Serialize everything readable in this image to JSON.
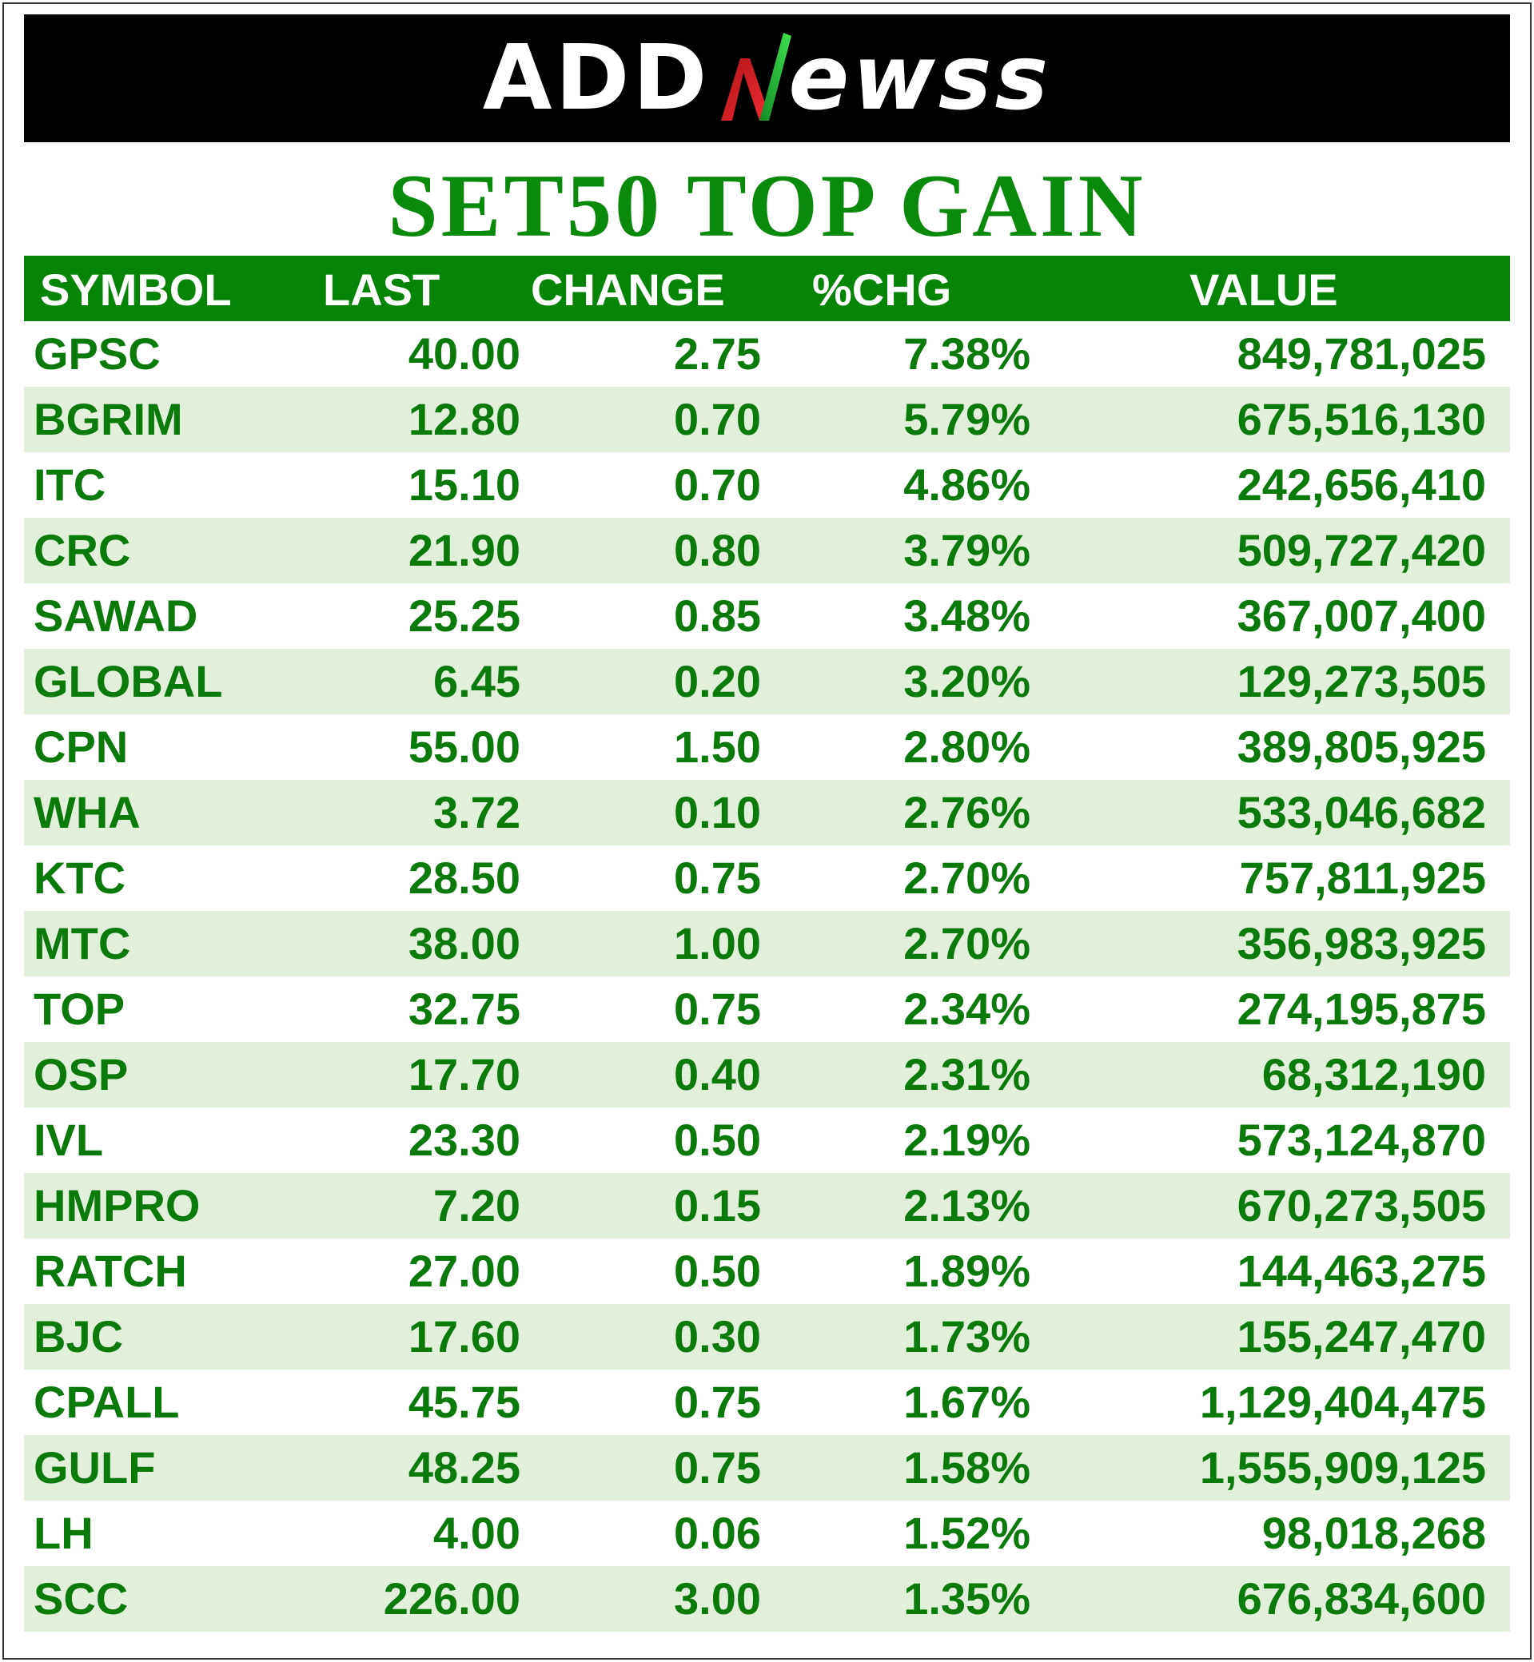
{
  "header": {
    "logo_prefix": "ADD",
    "logo_suffix": "ewss",
    "logo_colors": {
      "green": "#2ecc40",
      "red": "#e8202a"
    },
    "title": "SET50 TOP GAIN"
  },
  "chart_data": {
    "type": "table",
    "title": "SET50 TOP GAIN",
    "columns": [
      "SYMBOL",
      "LAST",
      "CHANGE",
      "%CHG",
      "VALUE"
    ],
    "rows": [
      [
        "GPSC",
        "40.00",
        "2.75",
        "7.38%",
        "849,781,025"
      ],
      [
        "BGRIM",
        "12.80",
        "0.70",
        "5.79%",
        "675,516,130"
      ],
      [
        "ITC",
        "15.10",
        "0.70",
        "4.86%",
        "242,656,410"
      ],
      [
        "CRC",
        "21.90",
        "0.80",
        "3.79%",
        "509,727,420"
      ],
      [
        "SAWAD",
        "25.25",
        "0.85",
        "3.48%",
        "367,007,400"
      ],
      [
        "GLOBAL",
        "6.45",
        "0.20",
        "3.20%",
        "129,273,505"
      ],
      [
        "CPN",
        "55.00",
        "1.50",
        "2.80%",
        "389,805,925"
      ],
      [
        "WHA",
        "3.72",
        "0.10",
        "2.76%",
        "533,046,682"
      ],
      [
        "KTC",
        "28.50",
        "0.75",
        "2.70%",
        "757,811,925"
      ],
      [
        "MTC",
        "38.00",
        "1.00",
        "2.70%",
        "356,983,925"
      ],
      [
        "TOP",
        "32.75",
        "0.75",
        "2.34%",
        "274,195,875"
      ],
      [
        "OSP",
        "17.70",
        "0.40",
        "2.31%",
        "68,312,190"
      ],
      [
        "IVL",
        "23.30",
        "0.50",
        "2.19%",
        "573,124,870"
      ],
      [
        "HMPRO",
        "7.20",
        "0.15",
        "2.13%",
        "670,273,505"
      ],
      [
        "RATCH",
        "27.00",
        "0.50",
        "1.89%",
        "144,463,275"
      ],
      [
        "BJC",
        "17.60",
        "0.30",
        "1.73%",
        "155,247,470"
      ],
      [
        "CPALL",
        "45.75",
        "0.75",
        "1.67%",
        "1,129,404,475"
      ],
      [
        "GULF",
        "48.25",
        "0.75",
        "1.58%",
        "1,555,909,125"
      ],
      [
        "LH",
        "4.00",
        "0.06",
        "1.52%",
        "98,018,268"
      ],
      [
        "SCC",
        "226.00",
        "3.00",
        "1.35%",
        "676,834,600"
      ]
    ],
    "colors": {
      "header_bg": "#068406",
      "header_text": "#ffffff",
      "row_alt_bg": "#e2f0db",
      "text": "#0a7a0a",
      "title": "#0a8a0a"
    }
  }
}
